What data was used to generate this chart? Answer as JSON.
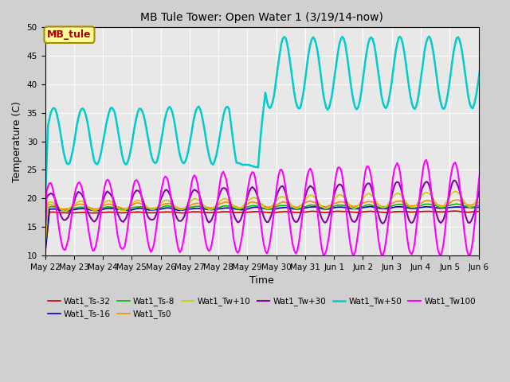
{
  "title": "MB Tule Tower: Open Water 1 (3/19/14-now)",
  "xlabel": "Time",
  "ylabel": "Temperature (C)",
  "ylim": [
    10,
    50
  ],
  "yticks": [
    10,
    15,
    20,
    25,
    30,
    35,
    40,
    45,
    50
  ],
  "plot_bg_color": "#e8e8e8",
  "fig_bg_color": "#d0d0d0",
  "legend_label": "MB_tule",
  "legend_label_color": "#aa0000",
  "legend_box_facecolor": "#ffff99",
  "series": [
    {
      "name": "Wat1_Ts-32",
      "color": "#cc0000",
      "lw": 1.2
    },
    {
      "name": "Wat1_Ts-16",
      "color": "#0000cc",
      "lw": 1.2
    },
    {
      "name": "Wat1_Ts-8",
      "color": "#00bb00",
      "lw": 1.2
    },
    {
      "name": "Wat1_Ts0",
      "color": "#ff8800",
      "lw": 1.2
    },
    {
      "name": "Wat1_Tw+10",
      "color": "#cccc00",
      "lw": 1.2
    },
    {
      "name": "Wat1_Tw+30",
      "color": "#8800aa",
      "lw": 1.5
    },
    {
      "name": "Wat1_Tw+50",
      "color": "#00cccc",
      "lw": 1.8
    },
    {
      "name": "Wat1_Tw100",
      "color": "#ff00ff",
      "lw": 1.5
    }
  ],
  "x_tick_labels": [
    "May 22",
    "May 23",
    "May 24",
    "May 25",
    "May 26",
    "May 27",
    "May 28",
    "May 29",
    "May 30",
    "May 31",
    "Jun 1",
    "Jun 2",
    "Jun 3",
    "Jun 4",
    "Jun 5",
    "Jun 6"
  ],
  "x_tick_positions": [
    0,
    1,
    2,
    3,
    4,
    5,
    6,
    7,
    8,
    9,
    10,
    11,
    12,
    13,
    14,
    15
  ]
}
